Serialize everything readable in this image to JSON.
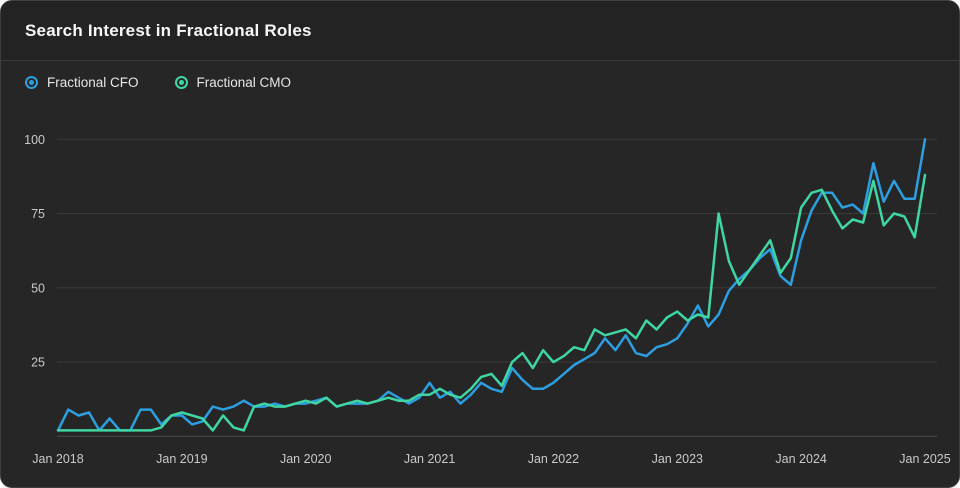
{
  "card": {
    "title": "Search Interest in Fractional Roles"
  },
  "legend": [
    {
      "label": "Fractional CFO",
      "color": "#2d9fe1"
    },
    {
      "label": "Fractional CMO",
      "color": "#3fd6a2"
    }
  ],
  "colors": {
    "card_background": "#262626",
    "header_background": "#232323",
    "gridline": "#3a3a3a",
    "baseline": "#494949",
    "tick_text": "#c9c9c9",
    "cfo_line": "#2d9fe1",
    "cmo_line": "#3fd6a2"
  },
  "chart_data": {
    "type": "line",
    "title": "Search Interest in Fractional Roles",
    "x_unit": "month",
    "x_start": "Jan 2018",
    "x_end": "Jan 2025",
    "x_tick_labels": [
      "Jan 2018",
      "Jan 2019",
      "Jan 2020",
      "Jan 2021",
      "Jan 2022",
      "Jan 2023",
      "Jan 2024",
      "Jan 2025"
    ],
    "months_per_x_tick": 12,
    "y_ticks": [
      25,
      50,
      75,
      100
    ],
    "ylim": [
      0,
      100
    ],
    "grid": "horizontal",
    "legend_position": "top-left",
    "series": [
      {
        "name": "Fractional CFO",
        "color": "#2d9fe1",
        "values": [
          2,
          9,
          7,
          8,
          2,
          6,
          2,
          2,
          9,
          9,
          4,
          7,
          7,
          4,
          5,
          10,
          9,
          10,
          12,
          10,
          10,
          11,
          10,
          11,
          11,
          12,
          13,
          10,
          11,
          11,
          11,
          12,
          15,
          13,
          11,
          13,
          18,
          13,
          15,
          11,
          14,
          18,
          16,
          15,
          23,
          19,
          16,
          16,
          18,
          21,
          24,
          26,
          28,
          33,
          29,
          34,
          28,
          27,
          30,
          31,
          33,
          38,
          44,
          37,
          41,
          49,
          53,
          56,
          60,
          63,
          54,
          51,
          66,
          76,
          82,
          82,
          77,
          78,
          75,
          92,
          79,
          86,
          80,
          80,
          100
        ]
      },
      {
        "name": "Fractional CMO",
        "color": "#3fd6a2",
        "values": [
          2,
          2,
          2,
          2,
          2,
          2,
          2,
          2,
          2,
          2,
          3,
          7,
          8,
          7,
          6,
          2,
          7,
          3,
          2,
          10,
          11,
          10,
          10,
          11,
          12,
          11,
          13,
          10,
          11,
          12,
          11,
          12,
          13,
          12,
          12,
          14,
          14,
          16,
          14,
          13,
          16,
          20,
          21,
          17,
          25,
          28,
          23,
          29,
          25,
          27,
          30,
          29,
          36,
          34,
          35,
          36,
          33,
          39,
          36,
          40,
          42,
          39,
          41,
          40,
          75,
          59,
          51,
          56,
          61,
          66,
          55,
          60,
          77,
          82,
          83,
          76,
          70,
          73,
          72,
          86,
          71,
          75,
          74,
          67,
          88
        ]
      }
    ]
  }
}
